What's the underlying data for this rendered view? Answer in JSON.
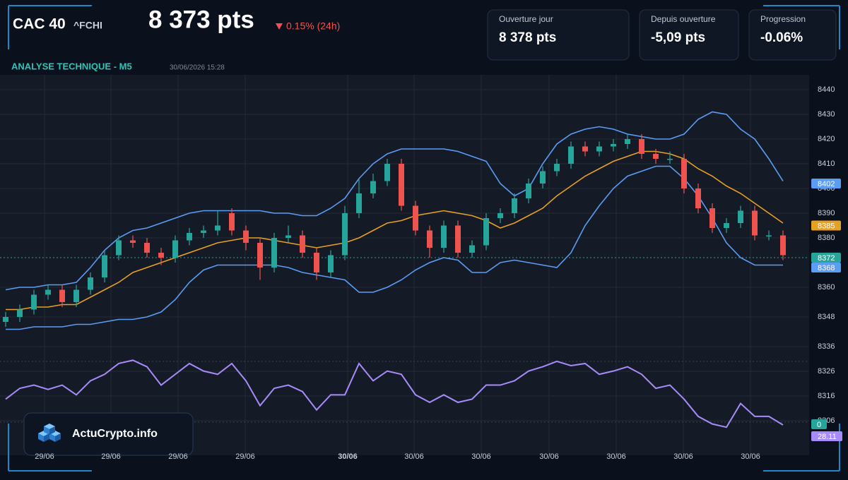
{
  "header": {
    "symbol": "CAC 40",
    "ticker": "^FCHI",
    "price": "8 373 pts",
    "change": "0.15% (24h)",
    "subtitle": "ANALYSE TECHNIQUE - M5",
    "timestamp": "30/06/2026 15:28",
    "cards": [
      {
        "label": "Ouverture jour",
        "value": "8 378 pts"
      },
      {
        "label": "Depuis ouverture",
        "value": "-5,09 pts"
      },
      {
        "label": "Progression",
        "value": "-0.06%"
      }
    ],
    "logo": "ActuCrypto.info"
  },
  "chart_data": {
    "type": "candlestick",
    "x_labels": [
      "29/06",
      "29/06",
      "29/06",
      "29/06",
      "30/06",
      "30/06",
      "30/06",
      "30/06",
      "30/06",
      "30/06",
      "30/06"
    ],
    "x_label_bold": 4,
    "open": [
      8346,
      8348,
      8351,
      8357,
      8359,
      8354,
      8359,
      8364,
      8373,
      8379,
      8378,
      8374,
      8372,
      8379,
      8382,
      8383,
      8390,
      8383,
      8378,
      8368,
      8380,
      8381,
      8374,
      8366,
      8373,
      8390,
      8398,
      8403,
      8410,
      8393,
      8383,
      8376,
      8385,
      8374,
      8377,
      8388,
      8390,
      8396,
      8402,
      8407,
      8410,
      8417,
      8415,
      8417,
      8418,
      8420,
      8414,
      8412,
      8412,
      8400,
      8392,
      8384,
      8386,
      8391,
      8381,
      8381
    ],
    "high": [
      8350,
      8353,
      8359,
      8361,
      8361,
      8361,
      8366,
      8375,
      8381,
      8381,
      8380,
      8376,
      8381,
      8384,
      8385,
      8391,
      8392,
      8385,
      8380,
      8382,
      8385,
      8383,
      8376,
      8375,
      8393,
      8404,
      8406,
      8412,
      8412,
      8395,
      8385,
      8387,
      8387,
      8379,
      8390,
      8392,
      8398,
      8404,
      8409,
      8412,
      8419,
      8419,
      8419,
      8420,
      8422,
      8422,
      8416,
      8415,
      8414,
      8402,
      8394,
      8388,
      8393,
      8393,
      8383,
      8383
    ],
    "low": [
      8344,
      8346,
      8349,
      8355,
      8352,
      8352,
      8357,
      8362,
      8371,
      8376,
      8372,
      8369,
      8370,
      8377,
      8380,
      8381,
      8381,
      8375,
      8363,
      8366,
      8378,
      8372,
      8363,
      8364,
      8371,
      8388,
      8396,
      8401,
      8391,
      8381,
      8372,
      8374,
      8372,
      8372,
      8375,
      8386,
      8388,
      8394,
      8400,
      8405,
      8408,
      8413,
      8413,
      8415,
      8416,
      8412,
      8410,
      8410,
      8398,
      8390,
      8382,
      8382,
      8384,
      8379,
      8379,
      8371
    ],
    "close": [
      8348,
      8351,
      8357,
      8359,
      8354,
      8359,
      8364,
      8373,
      8379,
      8378,
      8374,
      8372,
      8379,
      8382,
      8383,
      8385,
      8383,
      8378,
      8368,
      8380,
      8381,
      8374,
      8366,
      8373,
      8390,
      8398,
      8403,
      8410,
      8393,
      8383,
      8376,
      8385,
      8374,
      8377,
      8388,
      8390,
      8396,
      8402,
      8407,
      8410,
      8417,
      8415,
      8417,
      8418,
      8420,
      8414,
      8412,
      8412,
      8400,
      8392,
      8384,
      8386,
      8391,
      8381,
      8381,
      8373
    ],
    "up_color": "#26a69a",
    "down_color": "#ef5350",
    "series": [
      {
        "color": "#5b9cf5",
        "values": [
          8359,
          8360,
          8360,
          8361,
          8361,
          8362,
          8368,
          8375,
          8380,
          8383,
          8384,
          8386,
          8388,
          8390,
          8391,
          8391,
          8391,
          8391,
          8391,
          8390,
          8390,
          8389,
          8389,
          8392,
          8396,
          8404,
          8410,
          8414,
          8416,
          8416,
          8416,
          8416,
          8415,
          8413,
          8411,
          8402,
          8397,
          8400,
          8410,
          8418,
          8422,
          8424,
          8425,
          8424,
          8422,
          8421,
          8420,
          8420,
          8422,
          8428,
          8431,
          8430,
          8424,
          8420,
          8412,
          8403
        ]
      },
      {
        "color": "#e8a020",
        "values": [
          8351,
          8351,
          8352,
          8352,
          8353,
          8353,
          8356,
          8359,
          8362,
          8366,
          8368,
          8370,
          8372,
          8374,
          8376,
          8378,
          8379,
          8380,
          8380,
          8379,
          8378,
          8377,
          8376,
          8377,
          8378,
          8380,
          8383,
          8386,
          8387,
          8389,
          8390,
          8391,
          8390,
          8389,
          8387,
          8384,
          8386,
          8389,
          8392,
          8397,
          8401,
          8405,
          8408,
          8411,
          8413,
          8415,
          8415,
          8414,
          8412,
          8408,
          8405,
          8401,
          8398,
          8394,
          8390,
          8386
        ]
      },
      {
        "color": "#5b9cf5",
        "values": [
          8343,
          8343,
          8344,
          8344,
          8344,
          8345,
          8345,
          8346,
          8347,
          8347,
          8348,
          8350,
          8355,
          8362,
          8367,
          8369,
          8369,
          8369,
          8369,
          8369,
          8368,
          8366,
          8365,
          8364,
          8363,
          8358,
          8358,
          8360,
          8363,
          8367,
          8370,
          8372,
          8371,
          8366,
          8366,
          8370,
          8371,
          8370,
          8369,
          8368,
          8374,
          8385,
          8393,
          8400,
          8405,
          8407,
          8409,
          8409,
          8404,
          8397,
          8388,
          8378,
          8372,
          8369,
          8369,
          8369
        ]
      },
      {
        "color": "#a78bfa",
        "axis": "y2",
        "values": [
          52,
          62,
          65,
          61,
          65,
          56,
          69,
          75,
          85,
          88,
          82,
          65,
          75,
          85,
          78,
          75,
          85,
          69,
          46,
          62,
          65,
          59,
          42,
          56,
          56,
          85,
          69,
          78,
          75,
          56,
          49,
          56,
          49,
          52,
          65,
          65,
          69,
          78,
          82,
          87,
          83,
          85,
          75,
          78,
          82,
          75,
          62,
          65,
          52,
          36,
          29,
          26,
          48,
          36,
          36,
          28.11
        ]
      }
    ],
    "ylim": [
      8292,
      8446
    ],
    "yticks": [
      8440,
      8430,
      8420,
      8410,
      8400,
      8390,
      8380,
      8360,
      8348,
      8336,
      8326,
      8316,
      8306
    ],
    "y2lim": [
      0,
      100
    ],
    "grid": true,
    "price_badges": [
      {
        "value": 8402,
        "color": "#5b9cf5"
      },
      {
        "value": 8385,
        "color": "#e8a020"
      },
      {
        "value": 8372,
        "color": "#26a69a"
      },
      {
        "value": 8368,
        "color": "#5b9cf5"
      }
    ],
    "zero_badge": 0,
    "current_price": 8372
  }
}
